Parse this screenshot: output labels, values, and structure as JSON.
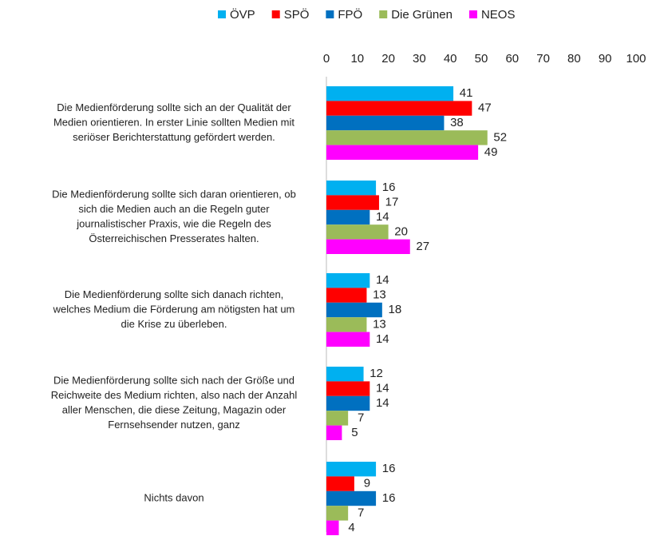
{
  "chart_data": {
    "type": "hbar",
    "categories": [
      [
        "Die Medienförderung sollte sich an der Qualität der",
        "Medien orientieren. In erster Linie sollten Medien mit",
        "seriöser Berichterstattung gefördert werden."
      ],
      [
        "Die Medienförderung sollte sich daran orientieren, ob",
        "sich die Medien auch an die Regeln guter",
        "journalistischer Praxis, wie die Regeln des",
        "Österreichischen Presserates halten."
      ],
      [
        "Die Medienförderung sollte sich danach richten,",
        "welches Medium die Förderung am nötigsten hat um",
        "die Krise zu überleben."
      ],
      [
        "Die Medienförderung sollte sich nach der Größe und",
        "Reichweite des Medium richten, also nach der Anzahl",
        "aller Menschen, die diese Zeitung, Magazin oder",
        "Fernsehsender nutzen, ganz"
      ],
      [
        "Nichts davon"
      ]
    ],
    "series": [
      {
        "name": "ÖVP",
        "color": "#00b0f0",
        "values": [
          41,
          16,
          14,
          12,
          16
        ]
      },
      {
        "name": "SPÖ",
        "color": "#ff0000",
        "values": [
          47,
          17,
          13,
          14,
          9
        ]
      },
      {
        "name": "FPÖ",
        "color": "#0070c0",
        "values": [
          38,
          14,
          18,
          14,
          16
        ]
      },
      {
        "name": "Die Grünen",
        "color": "#9bbb59",
        "values": [
          52,
          20,
          13,
          7,
          7
        ]
      },
      {
        "name": "NEOS",
        "color": "#ff00ff",
        "values": [
          49,
          27,
          14,
          5,
          4
        ]
      }
    ],
    "xlim": [
      0,
      100
    ],
    "xticks": [
      0,
      10,
      20,
      30,
      40,
      50,
      60,
      70,
      80,
      90,
      100
    ],
    "legend": "top",
    "grid": false
  }
}
